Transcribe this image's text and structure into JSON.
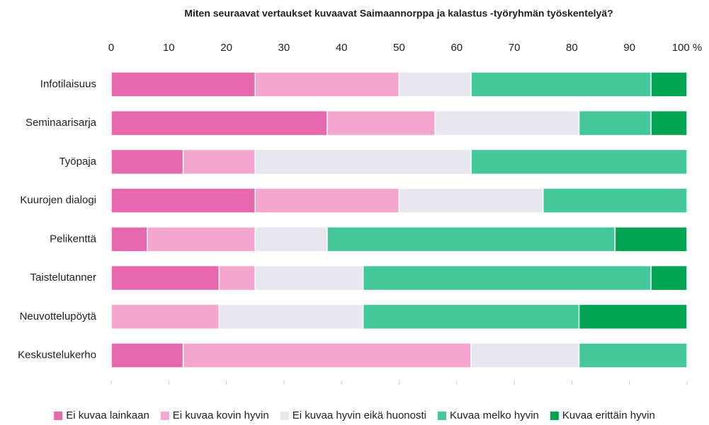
{
  "chart_data": {
    "type": "stacked_bar_horizontal",
    "title": "Miten seuraavat vertaukset kuvaavat Saimaannorppa ja kalastus -työryhmän työskentelyä?",
    "categories": [
      "Infotilaisuus",
      "Seminaarisarja",
      "Työpaja",
      "Kuurojen dialogi",
      "Pelikenttä",
      "Taistelutanner",
      "Neuvottelupöytä",
      "Keskustelukerho"
    ],
    "series": [
      {
        "name": "Ei kuvaa lainkaan",
        "color": "#e868ae",
        "values": [
          25,
          37.5,
          12.5,
          25,
          6.25,
          18.75,
          0,
          12.5
        ]
      },
      {
        "name": "Ei kuvaa kovin hyvin",
        "color": "#f4a6cf",
        "values": [
          25,
          18.75,
          12.5,
          25,
          18.75,
          6.25,
          18.75,
          50
        ]
      },
      {
        "name": "Ei kuvaa hyvin eikä huonosti",
        "color": "#e8e6ee",
        "values": [
          12.5,
          25,
          37.5,
          25,
          12.5,
          18.75,
          25,
          18.75
        ]
      },
      {
        "name": "Kuvaa melko hyvin",
        "color": "#44c89a",
        "values": [
          31.25,
          12.5,
          37.5,
          25,
          50,
          50,
          37.5,
          18.75
        ]
      },
      {
        "name": "Kuvaa erittäin hyvin",
        "color": "#00a352",
        "values": [
          6.25,
          6.25,
          0,
          0,
          12.5,
          6.25,
          18.75,
          0
        ]
      }
    ],
    "xlim": [
      0,
      100
    ],
    "xticks": [
      0,
      10,
      20,
      30,
      40,
      50,
      60,
      70,
      80,
      90,
      {
        "value": 100,
        "label": "100 %"
      }
    ],
    "legend": "bottom"
  }
}
